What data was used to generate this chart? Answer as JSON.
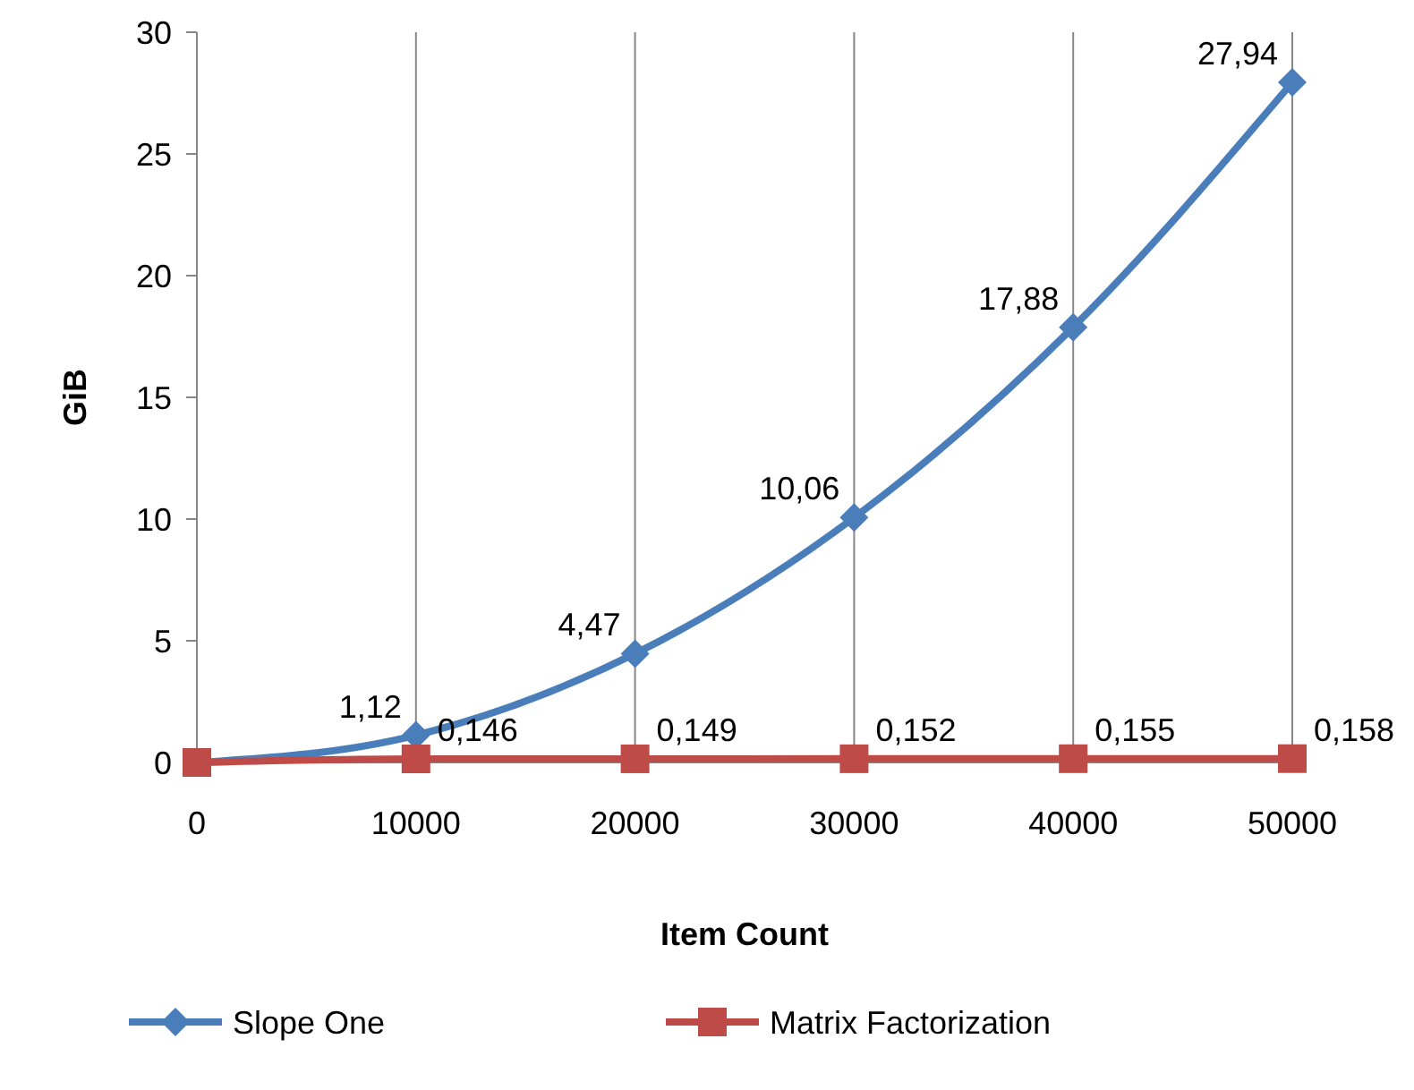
{
  "chart_data": {
    "type": "line",
    "xlabel": "Item Count",
    "ylabel": "GiB",
    "x": [
      0,
      10000,
      20000,
      30000,
      40000,
      50000
    ],
    "xlim": [
      0,
      50000
    ],
    "xticks": [
      0,
      10000,
      20000,
      30000,
      40000,
      50000
    ],
    "ylim": [
      0,
      30
    ],
    "yticks": [
      0,
      5,
      10,
      15,
      20,
      25,
      30
    ],
    "grid": "x",
    "legend": "bottom",
    "series": [
      {
        "name": "Slope One",
        "color": "#4a7ebb",
        "marker": "diamond",
        "values": [
          0,
          1.12,
          4.47,
          10.06,
          17.88,
          27.94
        ],
        "value_labels": [
          null,
          "1,12",
          "4,47",
          "10,06",
          "17,88",
          "27,94"
        ]
      },
      {
        "name": "Matrix Factorization",
        "color": "#be4b48",
        "marker": "square",
        "values": [
          0,
          0.146,
          0.149,
          0.152,
          0.155,
          0.158
        ],
        "value_labels": [
          null,
          "0,146",
          "0,149",
          "0,152",
          "0,155",
          "0,158"
        ]
      }
    ]
  }
}
